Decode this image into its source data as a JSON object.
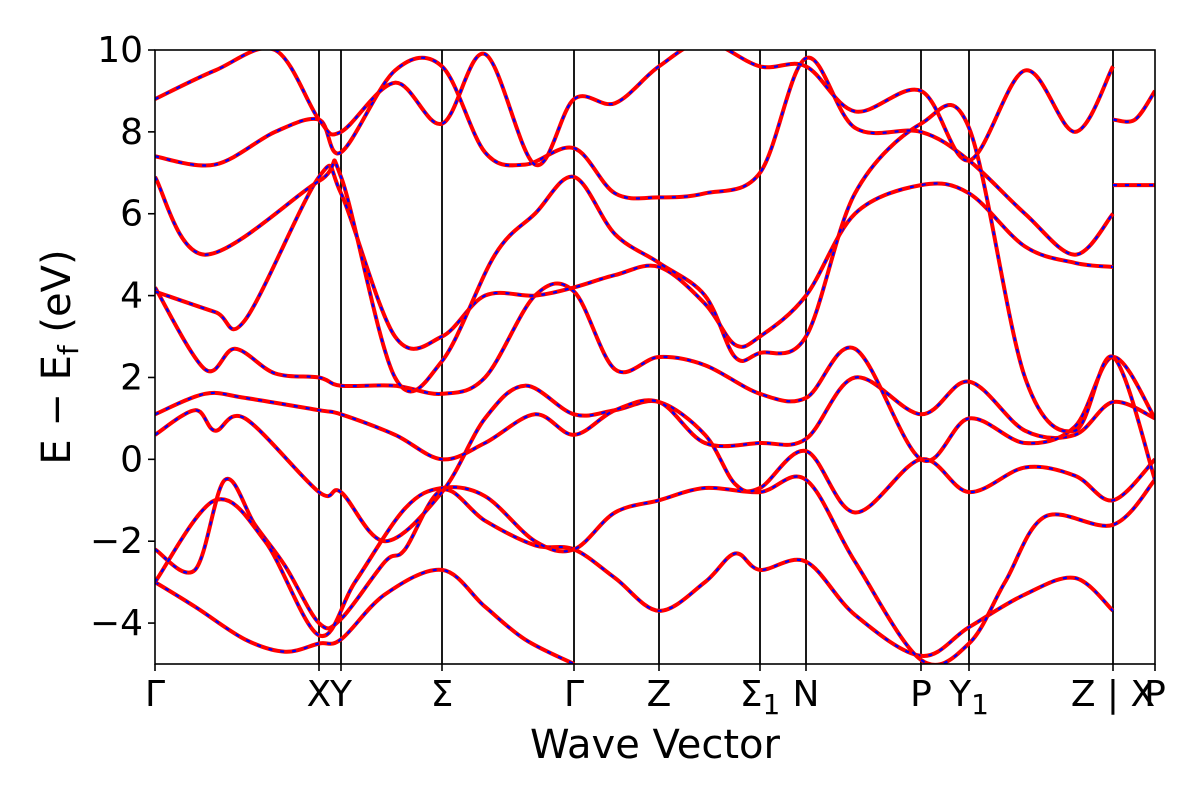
{
  "chart_data": {
    "type": "line",
    "title": "",
    "xlabel": "Wave Vector",
    "ylabel_main": "E − E",
    "ylabel_sub": "f",
    "ylabel_unit": " (eV)",
    "ylim": [
      -5,
      10
    ],
    "yticks": [
      -4,
      -2,
      0,
      2,
      4,
      6,
      8,
      10
    ],
    "ytick_labels": [
      "−4",
      "−2",
      "0",
      "2",
      "4",
      "6",
      "8",
      "10"
    ],
    "xlim": [
      0,
      1
    ],
    "high_symmetry_points": [
      {
        "label": "Γ",
        "sub": "",
        "x": 0.0
      },
      {
        "label": "X",
        "sub": "",
        "x": 0.164
      },
      {
        "label": "Y",
        "sub": "",
        "x": 0.186
      },
      {
        "label": "Σ",
        "sub": "",
        "x": 0.287
      },
      {
        "label": "Γ",
        "sub": "",
        "x": 0.419
      },
      {
        "label": "Z",
        "sub": "",
        "x": 0.504
      },
      {
        "label": "Σ",
        "sub": "1",
        "x": 0.605
      },
      {
        "label": "N",
        "sub": "",
        "x": 0.651
      },
      {
        "label": "P",
        "sub": "",
        "x": 0.766
      },
      {
        "label": "Y",
        "sub": "1",
        "x": 0.814
      },
      {
        "label": "Z | X",
        "sub": "",
        "x": 0.958
      },
      {
        "label": "P",
        "sub": "",
        "x": 1.0
      }
    ],
    "series": [
      {
        "values": [
          [
            0,
            -3.0
          ],
          [
            0.04,
            -3.6
          ],
          [
            0.09,
            -4.4
          ],
          [
            0.13,
            -4.7
          ],
          [
            0.164,
            -4.5
          ],
          [
            0.186,
            -4.4
          ],
          [
            0.23,
            -3.3
          ],
          [
            0.287,
            -2.7
          ],
          [
            0.33,
            -3.6
          ],
          [
            0.37,
            -4.4
          ],
          [
            0.419,
            -5.0
          ]
        ]
      },
      {
        "values": [
          [
            0,
            -2.2
          ],
          [
            0.04,
            -2.7
          ],
          [
            0.07,
            -0.5
          ],
          [
            0.1,
            -1.6
          ],
          [
            0.13,
            -2.6
          ],
          [
            0.164,
            -4.0
          ],
          [
            0.186,
            -3.9
          ],
          [
            0.23,
            -2.5
          ],
          [
            0.25,
            -2.2
          ],
          [
            0.287,
            -0.75
          ],
          [
            0.33,
            -1.5
          ],
          [
            0.38,
            -2.1
          ],
          [
            0.419,
            -2.2
          ],
          [
            0.46,
            -2.9
          ],
          [
            0.504,
            -3.7
          ],
          [
            0.55,
            -3.0
          ],
          [
            0.58,
            -2.3
          ],
          [
            0.605,
            -2.7
          ],
          [
            0.651,
            -2.5
          ],
          [
            0.7,
            -3.8
          ],
          [
            0.766,
            -4.8
          ],
          [
            0.814,
            -4.1
          ],
          [
            0.87,
            -3.3
          ],
          [
            0.92,
            -2.9
          ],
          [
            0.958,
            -3.7
          ]
        ]
      },
      {
        "values": [
          [
            0,
            -3.0
          ],
          [
            0.06,
            -1.0
          ],
          [
            0.11,
            -2.0
          ],
          [
            0.164,
            -4.3
          ],
          [
            0.2,
            -3.0
          ],
          [
            0.25,
            -1.2
          ],
          [
            0.287,
            -0.7
          ],
          [
            0.33,
            -0.9
          ],
          [
            0.38,
            -2.0
          ],
          [
            0.419,
            -2.2
          ],
          [
            0.46,
            -1.3
          ],
          [
            0.504,
            -1.0
          ],
          [
            0.55,
            -0.7
          ],
          [
            0.605,
            -0.8
          ],
          [
            0.651,
            -0.5
          ],
          [
            0.7,
            -2.5
          ],
          [
            0.766,
            -4.9
          ],
          [
            0.814,
            -4.5
          ],
          [
            0.85,
            -3.0
          ],
          [
            0.89,
            -1.4
          ],
          [
            0.958,
            -1.6
          ],
          [
            1.0,
            -0.5
          ]
        ]
      },
      {
        "values": [
          [
            0,
            0.6
          ],
          [
            0.04,
            1.2
          ],
          [
            0.06,
            0.7
          ],
          [
            0.09,
            1.0
          ],
          [
            0.164,
            -0.8
          ],
          [
            0.186,
            -0.8
          ],
          [
            0.23,
            -2.0
          ],
          [
            0.287,
            -0.8
          ],
          [
            0.33,
            1.0
          ],
          [
            0.37,
            1.8
          ],
          [
            0.419,
            1.1
          ],
          [
            0.46,
            1.2
          ],
          [
            0.504,
            1.4
          ],
          [
            0.55,
            0.6
          ],
          [
            0.58,
            -0.6
          ],
          [
            0.605,
            -0.7
          ],
          [
            0.651,
            0.2
          ],
          [
            0.7,
            -1.3
          ],
          [
            0.766,
            0.0
          ],
          [
            0.814,
            -0.8
          ],
          [
            0.87,
            -0.2
          ],
          [
            0.92,
            -0.4
          ],
          [
            0.958,
            -1.0
          ],
          [
            1.0,
            0.0
          ]
        ]
      },
      {
        "values": [
          [
            0,
            1.1
          ],
          [
            0.05,
            1.6
          ],
          [
            0.09,
            1.5
          ],
          [
            0.164,
            1.2
          ],
          [
            0.186,
            1.1
          ],
          [
            0.24,
            0.6
          ],
          [
            0.287,
            0.0
          ],
          [
            0.33,
            0.4
          ],
          [
            0.38,
            1.1
          ],
          [
            0.419,
            0.6
          ],
          [
            0.46,
            1.2
          ],
          [
            0.504,
            1.4
          ],
          [
            0.55,
            0.4
          ],
          [
            0.605,
            0.4
          ],
          [
            0.651,
            0.5
          ],
          [
            0.7,
            2.0
          ],
          [
            0.766,
            1.1
          ],
          [
            0.814,
            1.9
          ],
          [
            0.87,
            0.7
          ],
          [
            0.92,
            0.6
          ],
          [
            0.958,
            1.4
          ],
          [
            1.0,
            1.0
          ]
        ]
      },
      {
        "values": [
          [
            0,
            4.2
          ],
          [
            0.05,
            2.2
          ],
          [
            0.08,
            2.7
          ],
          [
            0.12,
            2.1
          ],
          [
            0.164,
            2.0
          ],
          [
            0.186,
            1.8
          ],
          [
            0.24,
            1.8
          ],
          [
            0.287,
            1.6
          ],
          [
            0.33,
            2.0
          ],
          [
            0.38,
            4.0
          ],
          [
            0.419,
            4.1
          ],
          [
            0.46,
            2.2
          ],
          [
            0.504,
            2.5
          ],
          [
            0.55,
            2.3
          ],
          [
            0.605,
            1.6
          ],
          [
            0.651,
            1.5
          ],
          [
            0.7,
            2.7
          ],
          [
            0.766,
            0.0
          ],
          [
            0.814,
            1.0
          ],
          [
            0.87,
            0.4
          ],
          [
            0.92,
            0.8
          ],
          [
            0.958,
            2.5
          ],
          [
            1.0,
            1.0
          ]
        ]
      },
      {
        "values": [
          [
            0,
            4.1
          ],
          [
            0.06,
            3.6
          ],
          [
            0.09,
            3.4
          ],
          [
            0.164,
            6.9
          ],
          [
            0.186,
            6.5
          ],
          [
            0.24,
            3.0
          ],
          [
            0.287,
            3.0
          ],
          [
            0.33,
            4.0
          ],
          [
            0.38,
            4.0
          ],
          [
            0.419,
            4.2
          ],
          [
            0.46,
            4.5
          ],
          [
            0.504,
            4.7
          ],
          [
            0.55,
            3.8
          ],
          [
            0.58,
            2.8
          ],
          [
            0.605,
            3.0
          ],
          [
            0.651,
            4.0
          ],
          [
            0.7,
            6.0
          ],
          [
            0.766,
            6.7
          ],
          [
            0.814,
            6.5
          ],
          [
            0.87,
            5.2
          ],
          [
            0.92,
            4.8
          ],
          [
            0.958,
            4.7
          ]
        ]
      },
      {
        "values": [
          [
            0,
            6.9
          ],
          [
            0.05,
            5.0
          ],
          [
            0.164,
            6.8
          ],
          [
            0.186,
            6.9
          ],
          [
            0.24,
            2.0
          ],
          [
            0.287,
            2.4
          ],
          [
            0.34,
            5.0
          ],
          [
            0.38,
            6.0
          ],
          [
            0.419,
            6.9
          ],
          [
            0.46,
            5.5
          ],
          [
            0.504,
            4.8
          ],
          [
            0.55,
            4.0
          ],
          [
            0.58,
            2.5
          ],
          [
            0.605,
            2.6
          ],
          [
            0.651,
            3.0
          ],
          [
            0.7,
            6.5
          ],
          [
            0.766,
            8.2
          ],
          [
            0.814,
            8.1
          ],
          [
            0.87,
            2.0
          ],
          [
            0.92,
            0.7
          ],
          [
            0.958,
            2.5
          ],
          [
            1.0,
            -0.5
          ]
        ]
      },
      {
        "values": [
          [
            0,
            7.4
          ],
          [
            0.06,
            7.2
          ],
          [
            0.12,
            8.0
          ],
          [
            0.164,
            8.3
          ],
          [
            0.186,
            7.5
          ],
          [
            0.24,
            9.5
          ],
          [
            0.287,
            9.6
          ],
          [
            0.33,
            7.5
          ],
          [
            0.37,
            7.2
          ],
          [
            0.419,
            7.6
          ],
          [
            0.46,
            6.5
          ],
          [
            0.504,
            6.4
          ],
          [
            0.55,
            6.5
          ],
          [
            0.605,
            7.0
          ],
          [
            0.651,
            9.8
          ],
          [
            0.7,
            8.1
          ],
          [
            0.766,
            8.0
          ],
          [
            0.814,
            7.3
          ],
          [
            0.87,
            6.0
          ],
          [
            0.92,
            5.0
          ],
          [
            0.958,
            6.0
          ]
        ]
      },
      {
        "values": [
          [
            0,
            8.8
          ],
          [
            0.06,
            9.5
          ],
          [
            0.12,
            10.0
          ],
          [
            0.164,
            8.3
          ],
          [
            0.186,
            8.0
          ],
          [
            0.24,
            9.2
          ],
          [
            0.287,
            8.2
          ],
          [
            0.33,
            9.9
          ],
          [
            0.38,
            7.2
          ],
          [
            0.419,
            8.8
          ],
          [
            0.46,
            8.7
          ],
          [
            0.504,
            9.6
          ],
          [
            0.55,
            10.2
          ],
          [
            0.605,
            9.6
          ],
          [
            0.651,
            9.6
          ],
          [
            0.7,
            8.5
          ],
          [
            0.766,
            9.0
          ],
          [
            0.814,
            7.3
          ],
          [
            0.87,
            9.5
          ],
          [
            0.92,
            8.0
          ],
          [
            0.958,
            9.6
          ]
        ]
      },
      {
        "values": [
          [
            0.958,
            6.7
          ],
          [
            1.0,
            6.7
          ]
        ]
      },
      {
        "values": [
          [
            0.958,
            8.3
          ],
          [
            0.98,
            8.3
          ],
          [
            1.0,
            9.0
          ]
        ]
      }
    ]
  }
}
